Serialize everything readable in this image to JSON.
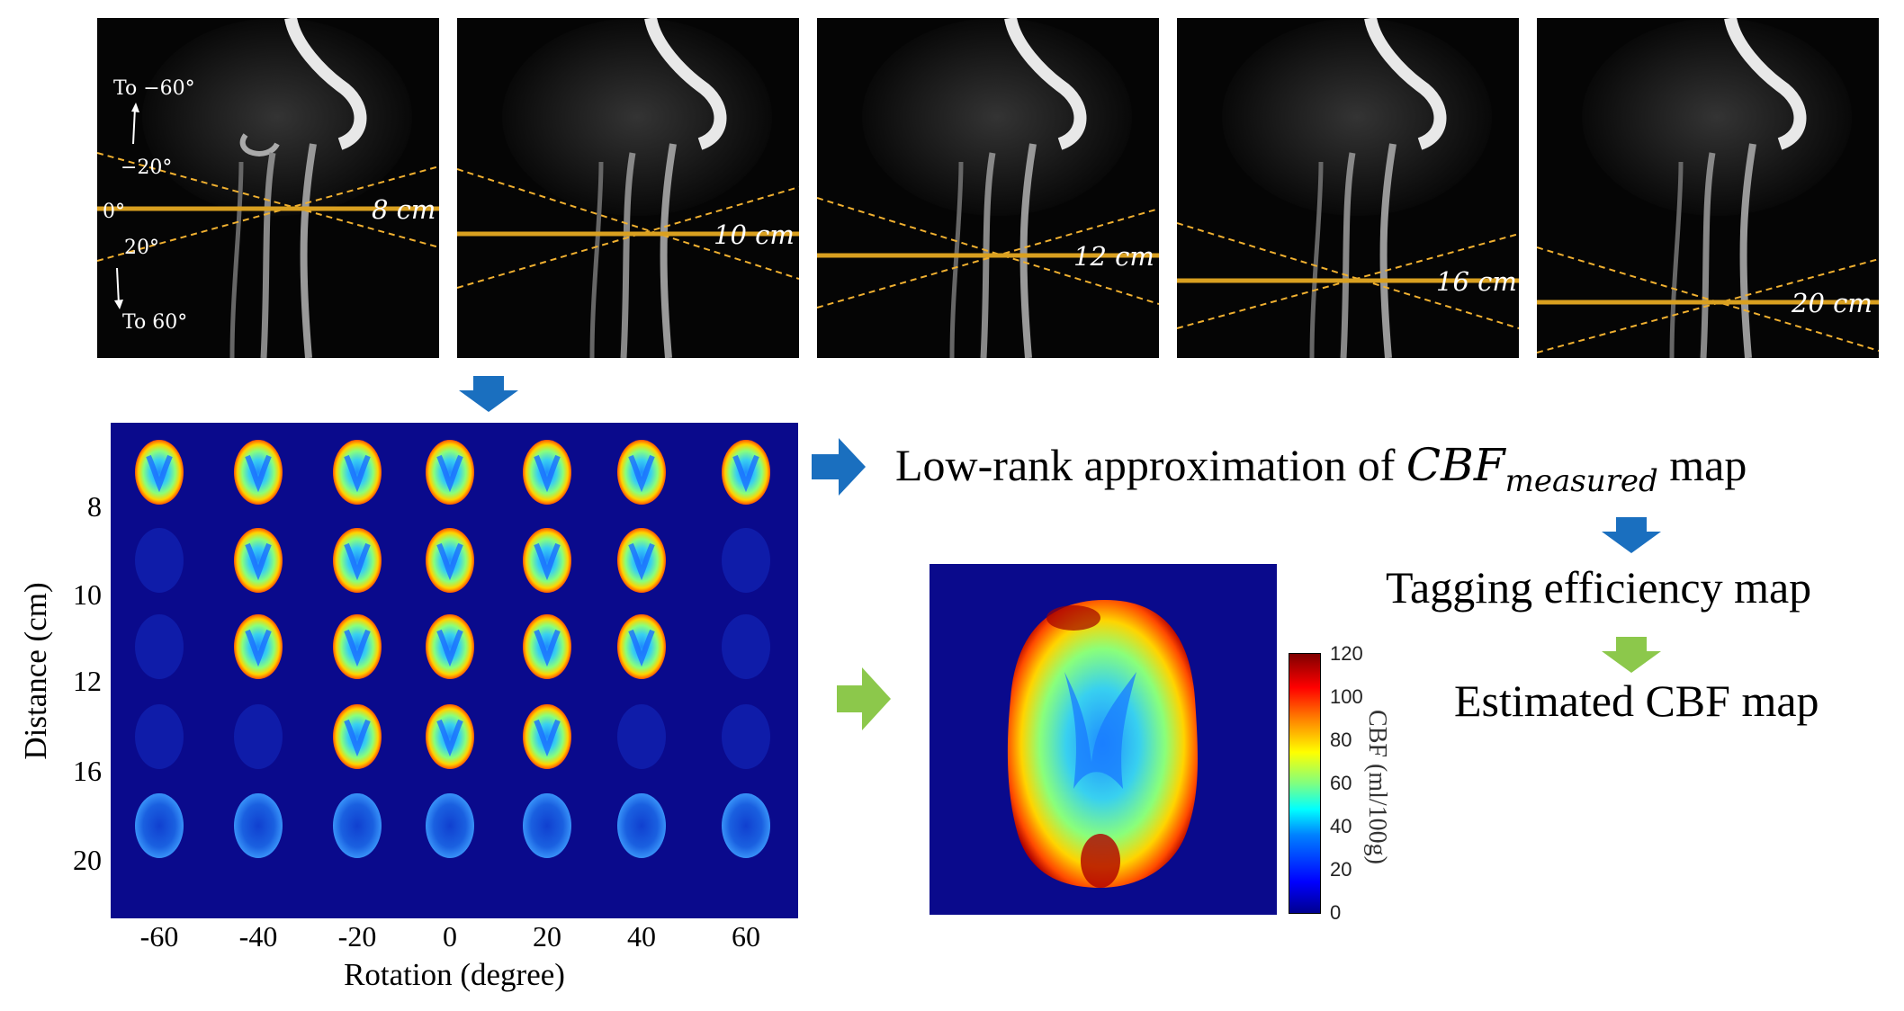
{
  "mra_panels": [
    {
      "distance_label": "8 cm"
    },
    {
      "distance_label": "10 cm"
    },
    {
      "distance_label": "12 cm"
    },
    {
      "distance_label": "16 cm"
    },
    {
      "distance_label": "20 cm"
    }
  ],
  "angle_labels": {
    "to_minus60": "To −60°",
    "minus20": "−20°",
    "zero": "0°",
    "plus20": "20°",
    "to_plus60": "To 60°"
  },
  "grid": {
    "distances": [
      "8",
      "10",
      "12",
      "16",
      "20"
    ],
    "rotations": [
      "-60",
      "-40",
      "-20",
      "0",
      "20",
      "40",
      "60"
    ],
    "y_title": "Distance (cm)",
    "x_title": "Rotation (degree)",
    "signal_levels": [
      [
        1,
        1,
        1,
        1,
        1,
        1,
        1
      ],
      [
        0,
        1,
        1,
        1,
        1,
        1,
        0
      ],
      [
        0,
        1,
        1,
        1,
        1,
        1,
        0
      ],
      [
        0,
        0,
        1,
        1,
        1,
        0,
        0
      ],
      [
        2,
        2,
        2,
        2,
        2,
        2,
        2
      ]
    ]
  },
  "flow": {
    "step1_pre": "Low-rank approximation of ",
    "step1_var": "CBF",
    "step1_sub": "measured",
    "step1_post": " map",
    "step2": "Tagging efficiency map",
    "step3": "Estimated CBF map"
  },
  "colorbar": {
    "ticks": [
      "120",
      "100",
      "80",
      "60",
      "40",
      "20",
      "0"
    ],
    "title": "CBF (ml/100g)"
  },
  "colors": {
    "blue_arrow": "#1a6fbf",
    "green_arrow": "#8cc84b",
    "label_line": "#d9a020",
    "map_background": "#0a0a8c"
  }
}
